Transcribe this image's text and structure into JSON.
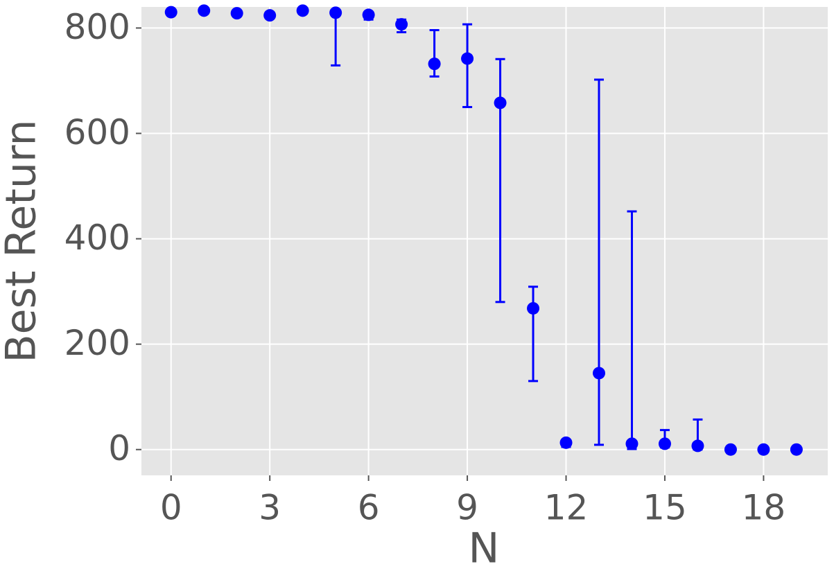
{
  "chart_data": {
    "type": "errorbar",
    "x_label": "N",
    "y_label": "Best Return",
    "x": [
      0,
      1,
      2,
      3,
      4,
      5,
      6,
      7,
      8,
      9,
      10,
      11,
      12,
      13,
      14,
      15,
      16,
      17,
      18,
      19
    ],
    "values": [
      830,
      833,
      828,
      824,
      833,
      829,
      825,
      807,
      732,
      742,
      658,
      268,
      13,
      145,
      11,
      11,
      7,
      0,
      0,
      0
    ],
    "lower": [
      830,
      833,
      824,
      824,
      833,
      729,
      816,
      792,
      708,
      650,
      280,
      130,
      5,
      9,
      1,
      4,
      0,
      0,
      0,
      0
    ],
    "upper": [
      830,
      833,
      830,
      824,
      833,
      829,
      828,
      816,
      796,
      807,
      741,
      309,
      13,
      702,
      452,
      37,
      57,
      0,
      0,
      0
    ],
    "color": "#0000ff",
    "xlim": [
      -0.9,
      19.95
    ],
    "ylim": [
      -49,
      840
    ],
    "xticks": [
      0,
      3,
      6,
      9,
      12,
      15,
      18
    ],
    "yticks": [
      0,
      200,
      400,
      600,
      800
    ],
    "grid": true
  }
}
